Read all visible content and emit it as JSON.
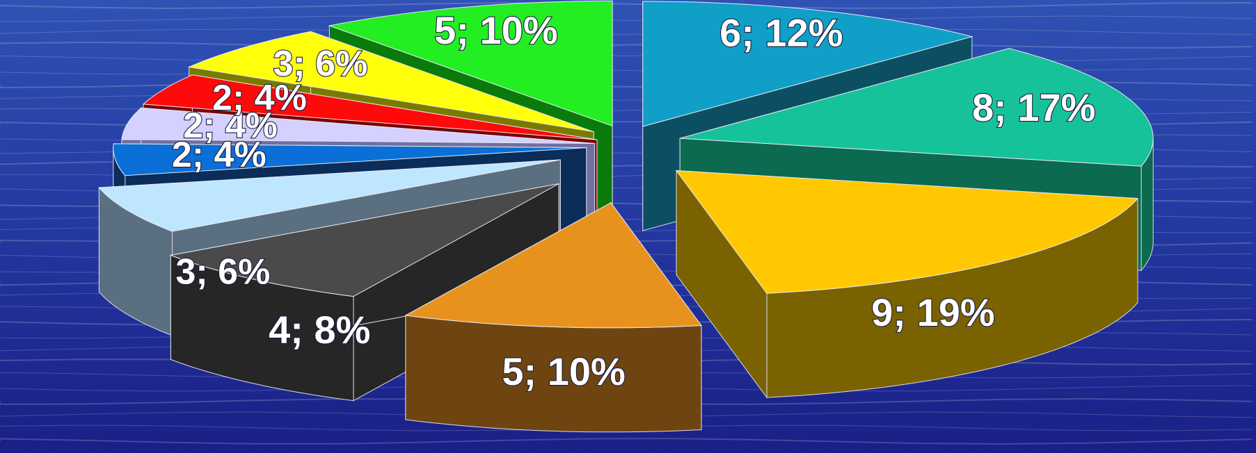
{
  "chart_data": {
    "type": "pie",
    "title": "",
    "label_format": "value; percent",
    "style": "3d exploded",
    "slices": [
      {
        "value": 6,
        "percent": 12,
        "label": "6; 12%",
        "top_color": "#0f9fc7",
        "side_color": "#0d4f62"
      },
      {
        "value": 8,
        "percent": 17,
        "label": "8; 17%",
        "top_color": "#16c29a",
        "side_color": "#0b6a50"
      },
      {
        "value": 9,
        "percent": 19,
        "label": "9; 19%",
        "top_color": "#ffc800",
        "side_color": "#7a6200"
      },
      {
        "value": 5,
        "percent": 10,
        "label": "5; 10%",
        "top_color": "#e8921e",
        "side_color": "#6e4510"
      },
      {
        "value": 4,
        "percent": 8,
        "label": "4; 8%",
        "top_color": "#4a4a4a",
        "side_color": "#262626"
      },
      {
        "value": 3,
        "percent": 6,
        "label": "3; 6%",
        "top_color": "#bfe6ff",
        "side_color": "#5a6f80"
      },
      {
        "value": 2,
        "percent": 4,
        "label": "2; 4%",
        "top_color": "#0a6fd6",
        "side_color": "#0a2d5a"
      },
      {
        "value": 2,
        "percent": 4,
        "label": "2; 4%",
        "top_color": "#d4d0ff",
        "side_color": "#7070a0"
      },
      {
        "value": 2,
        "percent": 4,
        "label": "2; 4%",
        "top_color": "#ff0a0a",
        "side_color": "#7a0000"
      },
      {
        "value": 3,
        "percent": 6,
        "label": "3; 6%",
        "top_color": "#ffff0a",
        "side_color": "#7a7a00"
      },
      {
        "value": 5,
        "percent": 10,
        "label": "5; 10%",
        "top_color": "#22ee22",
        "side_color": "#0a7a0a"
      }
    ]
  },
  "colors": {
    "background_top": "#2a46a8",
    "background_bottom": "#1c238a"
  }
}
